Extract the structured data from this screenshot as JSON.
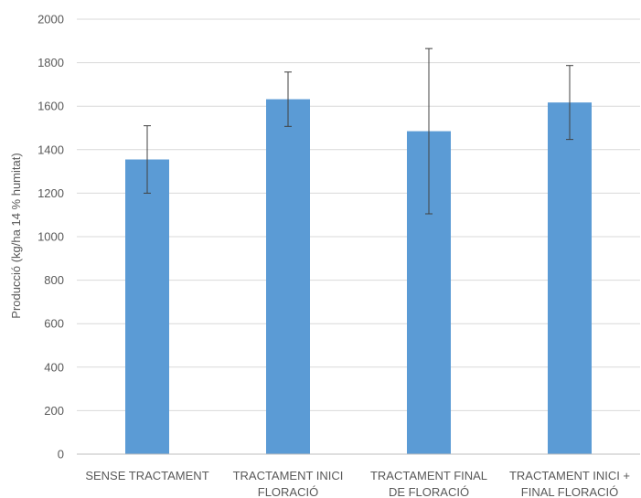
{
  "chart_data": {
    "type": "bar",
    "title": "",
    "xlabel": "",
    "ylabel": "Producció (kg/ha 14 % humitat)",
    "ylim": [
      0,
      2000
    ],
    "yticks": [
      0,
      200,
      400,
      600,
      800,
      1000,
      1200,
      1400,
      1600,
      1800,
      2000
    ],
    "grid": true,
    "legend": "none",
    "bar_color": "#5b9bd5",
    "categories": [
      [
        "SENSE TRACTAMENT"
      ],
      [
        "TRACTAMENT INICI",
        "FLORACIÓ"
      ],
      [
        "TRACTAMENT FINAL",
        "DE FLORACIÓ"
      ],
      [
        "TRACTAMENT INICI +",
        "FINAL FLORACIÓ"
      ]
    ],
    "values": [
      1355,
      1632,
      1485,
      1617
    ],
    "error_low": [
      1200,
      1507,
      1105,
      1447
    ],
    "error_high": [
      1510,
      1757,
      1865,
      1787
    ]
  }
}
